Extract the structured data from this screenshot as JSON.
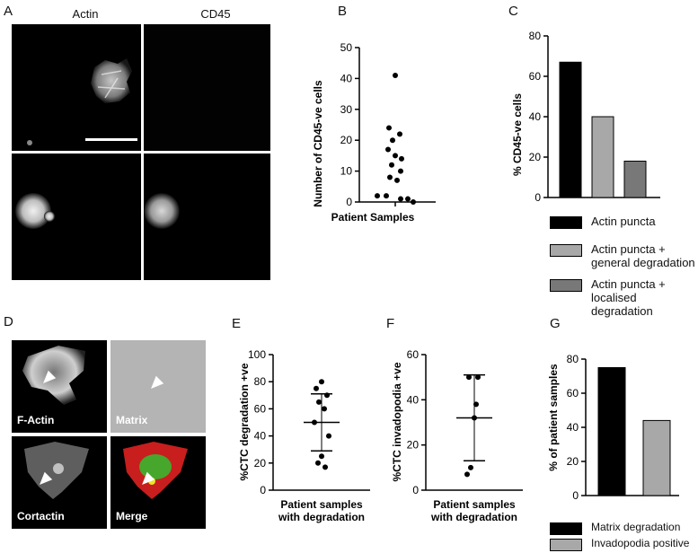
{
  "panels": {
    "A": {
      "letter": "A",
      "columns": [
        "Actin",
        "CD45"
      ]
    },
    "B": {
      "letter": "B"
    },
    "C": {
      "letter": "C"
    },
    "D": {
      "letter": "D",
      "labels": [
        "F-Actin",
        "Matrix",
        "Cortactin",
        "Merge"
      ]
    },
    "E": {
      "letter": "E"
    },
    "F": {
      "letter": "F"
    },
    "G": {
      "letter": "G"
    }
  },
  "colors": {
    "black": "#000000",
    "light_grey": "#a8a8a8",
    "dark_grey": "#787878",
    "merge_red": "#c81e1e",
    "merge_green": "#2fbf2f"
  },
  "chart_data": [
    {
      "id": "B",
      "type": "scatter",
      "xlabel": "Patient Samples",
      "ylabel": "Number of CD45-ve cells",
      "ylim": [
        0,
        50
      ],
      "yticks": [
        0,
        10,
        20,
        30,
        40,
        50
      ],
      "values": [
        41,
        24,
        22,
        20,
        17,
        15,
        14,
        12,
        10,
        8,
        7,
        2,
        2,
        1,
        1,
        0
      ]
    },
    {
      "id": "C",
      "type": "bar",
      "ylabel": "% CD45-ve cells",
      "ylim": [
        0,
        80
      ],
      "yticks": [
        0,
        20,
        40,
        60,
        80
      ],
      "categories": [
        "Actin puncta",
        "Actin puncta + general degradation",
        "Actin puncta + localised degradation"
      ],
      "legend": [
        "Actin puncta",
        "Actin puncta +\ngeneral degradation",
        "Actin puncta +\nlocalised degradation"
      ],
      "values": [
        67,
        40,
        18
      ],
      "colors": [
        "#000000",
        "#a8a8a8",
        "#787878"
      ]
    },
    {
      "id": "E",
      "type": "scatter",
      "xlabel": "Patient samples\nwith degradation",
      "ylabel": "%CTC degradation +ve",
      "ylim": [
        0,
        100
      ],
      "yticks": [
        0,
        20,
        40,
        60,
        80,
        100
      ],
      "values": [
        80,
        75,
        70,
        65,
        60,
        50,
        40,
        25,
        20,
        17
      ],
      "mean": 50,
      "sd_upper": 71,
      "sd_lower": 29
    },
    {
      "id": "F",
      "type": "scatter",
      "xlabel": "Patient samples\nwith degradation",
      "ylabel": "%CTC invadopodia +ve",
      "ylim": [
        0,
        60
      ],
      "yticks": [
        0,
        20,
        40,
        60
      ],
      "values": [
        50,
        50,
        38,
        32,
        10,
        7
      ],
      "mean": 32,
      "sd_upper": 51,
      "sd_lower": 13
    },
    {
      "id": "G",
      "type": "bar",
      "ylabel": "% of patient samples",
      "ylim": [
        0,
        80
      ],
      "yticks": [
        0,
        20,
        40,
        60,
        80
      ],
      "categories": [
        "Matrix degradation",
        "Invadopodia positive"
      ],
      "values": [
        75,
        44
      ],
      "colors": [
        "#000000",
        "#a8a8a8"
      ]
    }
  ]
}
